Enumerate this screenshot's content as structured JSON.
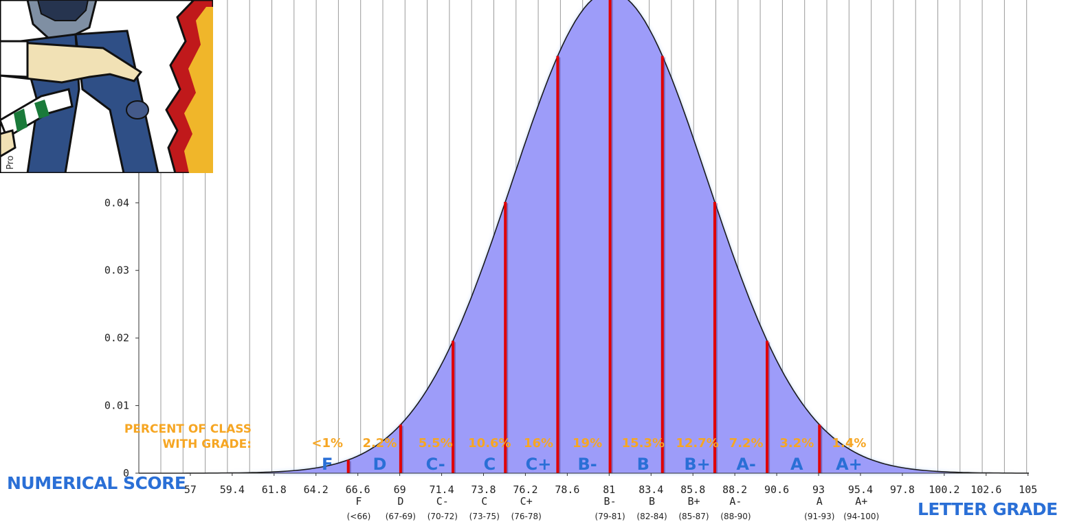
{
  "chart_data": {
    "type": "area",
    "title": "",
    "ylabel": "Pro",
    "xlabel": "NUMERICAL SCORE",
    "x2label": "LETTER GRADE",
    "ylim": [
      0,
      0.07
    ],
    "xlim": [
      54,
      105
    ],
    "y_ticks": [
      "0",
      "0.01",
      "0.02",
      "0.03",
      "0.04"
    ],
    "y_tick_values": [
      0,
      0.01,
      0.02,
      0.03,
      0.04
    ],
    "x_ticks": [
      "57",
      "59.4",
      "61.8",
      "64.2",
      "66.6",
      "69",
      "71.4",
      "73.8",
      "76.2",
      "78.6",
      "81",
      "83.4",
      "85.8",
      "88.2",
      "90.6",
      "93",
      "95.4",
      "97.8",
      "100.2",
      "102.6",
      "105"
    ],
    "x_tick_values": [
      56.95,
      59.35,
      61.75,
      64.15,
      66.55,
      68.95,
      71.35,
      73.75,
      76.15,
      78.55,
      80.95,
      83.35,
      85.75,
      88.15,
      90.55,
      92.95,
      95.35,
      97.75,
      100.15,
      102.55,
      104.95
    ],
    "curve": {
      "mean": 81,
      "sd": 5.6
    },
    "cutoffs": [
      66,
      69,
      72,
      75,
      78,
      81,
      84,
      87,
      90,
      93
    ],
    "bands": [
      {
        "grade": "F",
        "range": "(<66)",
        "percent": "<1%",
        "tick_x": 66.6,
        "band_x": 64.8
      },
      {
        "grade": "D",
        "range": "(67-69)",
        "percent": "2.2%",
        "tick_x": 69,
        "band_x": 67.8
      },
      {
        "grade": "C-",
        "range": "(70-72)",
        "percent": "5.5%",
        "tick_x": 71.4,
        "band_x": 71.0
      },
      {
        "grade": "C",
        "range": "(73-75)",
        "percent": "10.6%",
        "tick_x": 73.8,
        "band_x": 74.1
      },
      {
        "grade": "C+",
        "range": "(76-78)",
        "percent": "16%",
        "tick_x": 76.2,
        "band_x": 76.9
      },
      {
        "grade": "B-",
        "range": "(79-81)",
        "percent": "19%",
        "tick_x": 81,
        "band_x": 79.7
      },
      {
        "grade": "B",
        "range": "(82-84)",
        "percent": "15.3%",
        "tick_x": 83.4,
        "band_x": 82.9
      },
      {
        "grade": "B+",
        "range": "(85-87)",
        "percent": "12.7%",
        "tick_x": 85.8,
        "band_x": 86.0
      },
      {
        "grade": "A-",
        "range": "(88-90)",
        "percent": "7.2%",
        "tick_x": 88.2,
        "band_x": 88.8
      },
      {
        "grade": "A",
        "range": "(91-93)",
        "percent": "3.2%",
        "tick_x": 93,
        "band_x": 91.7
      },
      {
        "grade": "A+",
        "range": "(94-100)",
        "percent": "1.4%",
        "tick_x": 95.4,
        "band_x": 94.7
      }
    ],
    "percent_title_line1": "PERCENT OF CLASS",
    "percent_title_line2": "WITH GRADE:",
    "grid": true
  },
  "colors": {
    "fill": "#9d9cf9",
    "curve": "#1a1a1a",
    "cutoff": "#e10000",
    "grade_letter": "#2a6fd6",
    "percent": "#f6a623",
    "grid": "#9a9a9a"
  },
  "image": {
    "name": "cartoon-character-image",
    "description_icon": "cartoon-figure-icon"
  }
}
